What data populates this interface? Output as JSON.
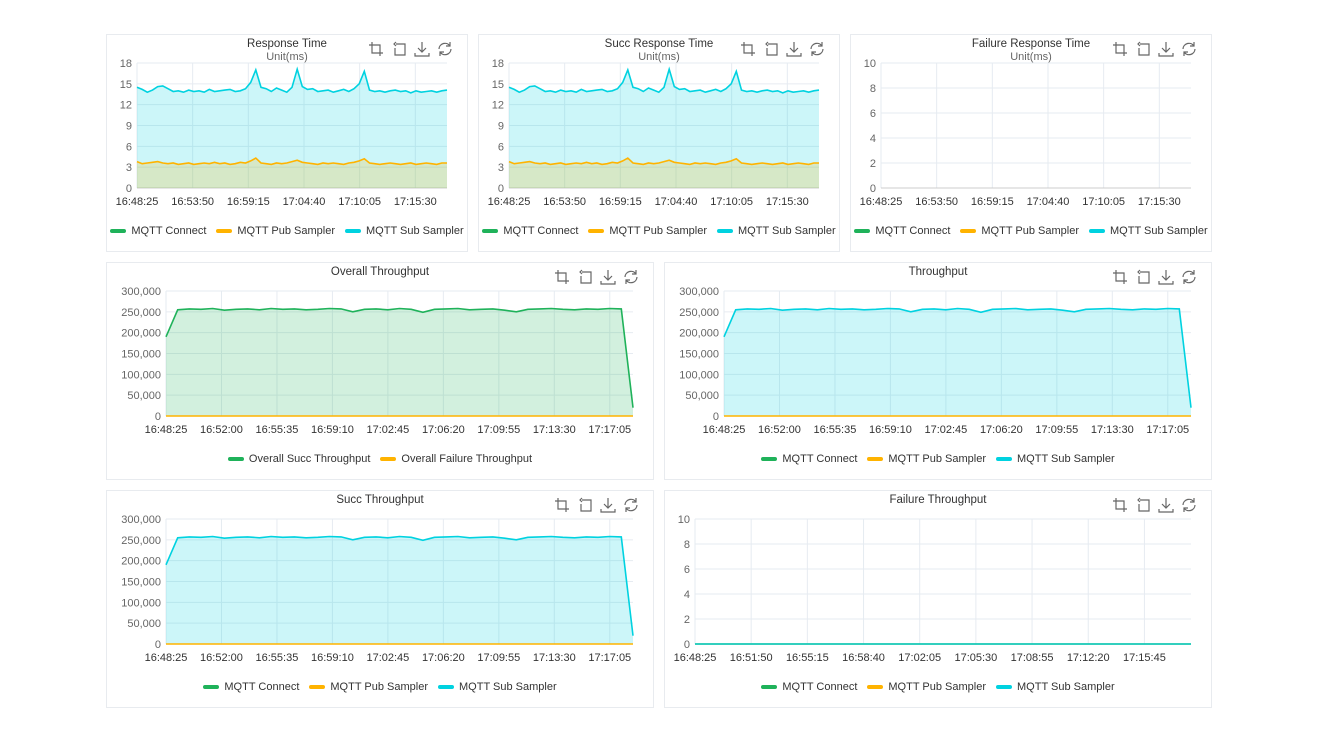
{
  "colors": {
    "connect": "#1fb25a",
    "pub": "#ffb300",
    "sub": "#00d2e0",
    "grid": "#e6ebf1",
    "text": "#666666"
  },
  "toolbar_icons": [
    "zoom-icon",
    "zoom-reset-icon",
    "download-icon",
    "refresh-icon"
  ],
  "chart_data": [
    {
      "type": "area",
      "title": "Response Time",
      "subtitle": "Unit(ms)",
      "ylim": [
        0,
        18
      ],
      "yticks": [
        0,
        3,
        6,
        9,
        12,
        15,
        18
      ],
      "xlim": [
        "16:48:25",
        "17:18:35"
      ],
      "xticks": [
        "16:48:25",
        "16:53:50",
        "16:59:15",
        "17:04:40",
        "17:10:05",
        "17:15:30"
      ],
      "grid": true,
      "legend_position": "bottom",
      "legend": [
        "MQTT Connect",
        "MQTT Pub Sampler",
        "MQTT Sub Sampler"
      ],
      "series": [
        {
          "name": "MQTT Sub Sampler",
          "color": "sub",
          "values": [
            14.5,
            14.2,
            13.8,
            14.1,
            14.6,
            14.7,
            14.3,
            13.9,
            14.0,
            13.8,
            14.1,
            13.9,
            14.0,
            13.8,
            14.2,
            13.9,
            14.0,
            14.1,
            14.2,
            13.9,
            14.0,
            14.3,
            15.2,
            17.0,
            14.5,
            14.3,
            13.9,
            14.4,
            14.1,
            13.8,
            14.5,
            17.1,
            14.6,
            14.2,
            14.3,
            13.9,
            14.0,
            14.1,
            13.8,
            14.0,
            14.2,
            13.9,
            14.3,
            15.0,
            16.8,
            14.1,
            13.9,
            14.0,
            13.8,
            14.0,
            14.1,
            13.9,
            14.0,
            13.7,
            14.0,
            13.8,
            13.9,
            14.0,
            13.8,
            14.0,
            14.1
          ]
        },
        {
          "name": "MQTT Pub Sampler",
          "color": "pub",
          "values": [
            3.8,
            3.5,
            3.6,
            3.7,
            3.8,
            3.6,
            3.5,
            3.6,
            3.4,
            3.5,
            3.6,
            3.4,
            3.5,
            3.6,
            3.5,
            3.7,
            3.5,
            3.6,
            3.4,
            3.5,
            3.7,
            3.6,
            3.9,
            4.3,
            3.6,
            3.5,
            3.4,
            3.6,
            3.5,
            3.6,
            3.8,
            4.0,
            3.7,
            3.6,
            3.5,
            3.4,
            3.6,
            3.5,
            3.6,
            3.5,
            3.4,
            3.6,
            3.7,
            3.9,
            4.2,
            3.6,
            3.5,
            3.4,
            3.5,
            3.6,
            3.5,
            3.4,
            3.5,
            3.6,
            3.4,
            3.5,
            3.6,
            3.5,
            3.4,
            3.6,
            3.6
          ]
        }
      ]
    },
    {
      "type": "area",
      "title": "Succ Response Time",
      "subtitle": "Unit(ms)",
      "ylim": [
        0,
        18
      ],
      "yticks": [
        0,
        3,
        6,
        9,
        12,
        15,
        18
      ],
      "xlim": [
        "16:48:25",
        "17:18:35"
      ],
      "xticks": [
        "16:48:25",
        "16:53:50",
        "16:59:15",
        "17:04:40",
        "17:10:05",
        "17:15:30"
      ],
      "grid": true,
      "legend_position": "bottom",
      "legend": [
        "MQTT Connect",
        "MQTT Pub Sampler",
        "MQTT Sub Sampler"
      ],
      "series": [
        {
          "name": "MQTT Sub Sampler",
          "color": "sub",
          "values": [
            14.5,
            14.2,
            13.8,
            14.1,
            14.6,
            14.7,
            14.3,
            13.9,
            14.0,
            13.8,
            14.1,
            13.9,
            14.0,
            13.8,
            14.2,
            13.9,
            14.0,
            14.1,
            14.2,
            13.9,
            14.0,
            14.3,
            15.2,
            17.0,
            14.5,
            14.3,
            13.9,
            14.4,
            14.1,
            13.8,
            14.5,
            17.1,
            14.6,
            14.2,
            14.3,
            13.9,
            14.0,
            14.1,
            13.8,
            14.0,
            14.2,
            13.9,
            14.3,
            15.0,
            16.8,
            14.1,
            13.9,
            14.0,
            13.8,
            14.0,
            14.1,
            13.9,
            14.0,
            13.7,
            14.0,
            13.8,
            13.9,
            14.0,
            13.8,
            14.0,
            14.1
          ]
        },
        {
          "name": "MQTT Pub Sampler",
          "color": "pub",
          "values": [
            3.8,
            3.5,
            3.6,
            3.7,
            3.8,
            3.6,
            3.5,
            3.6,
            3.4,
            3.5,
            3.6,
            3.4,
            3.5,
            3.6,
            3.5,
            3.7,
            3.5,
            3.6,
            3.4,
            3.5,
            3.7,
            3.6,
            3.9,
            4.3,
            3.6,
            3.5,
            3.4,
            3.6,
            3.5,
            3.6,
            3.8,
            4.0,
            3.7,
            3.6,
            3.5,
            3.4,
            3.6,
            3.5,
            3.6,
            3.5,
            3.4,
            3.6,
            3.7,
            3.9,
            4.2,
            3.6,
            3.5,
            3.4,
            3.5,
            3.6,
            3.5,
            3.4,
            3.5,
            3.6,
            3.4,
            3.5,
            3.6,
            3.5,
            3.4,
            3.6,
            3.6
          ]
        }
      ]
    },
    {
      "type": "line",
      "title": "Failure Response Time",
      "subtitle": "Unit(ms)",
      "ylim": [
        0,
        10
      ],
      "yticks": [
        0,
        2,
        4,
        6,
        8,
        10
      ],
      "xlim": [
        "16:48:25",
        "17:18:35"
      ],
      "xticks": [
        "16:48:25",
        "16:53:50",
        "16:59:15",
        "17:04:40",
        "17:10:05",
        "17:15:30"
      ],
      "grid": true,
      "legend_position": "bottom",
      "legend": [
        "MQTT Connect",
        "MQTT Pub Sampler",
        "MQTT Sub Sampler"
      ],
      "series": []
    },
    {
      "type": "area",
      "title": "Overall Throughput",
      "subtitle": "",
      "ylim": [
        0,
        300000
      ],
      "yticks": [
        0,
        50000,
        100000,
        150000,
        200000,
        250000,
        300000
      ],
      "xlim": [
        "16:48:25",
        "17:18:35"
      ],
      "xticks": [
        "16:48:25",
        "16:52:00",
        "16:55:35",
        "16:59:10",
        "17:02:45",
        "17:06:20",
        "17:09:55",
        "17:13:30",
        "17:17:05"
      ],
      "grid": true,
      "legend_position": "bottom",
      "legend": [
        "Overall Succ Throughput",
        "Overall Failure Throughput"
      ],
      "legend_colors": [
        "connect",
        "pub"
      ],
      "series": [
        {
          "name": "Overall Succ Throughput",
          "color": "connect",
          "values": [
            190000,
            255000,
            257000,
            256000,
            258000,
            254000,
            256000,
            257000,
            255000,
            258000,
            256000,
            257000,
            255000,
            256000,
            258000,
            257000,
            250000,
            256000,
            257000,
            255000,
            258000,
            256000,
            249000,
            256000,
            257000,
            258000,
            255000,
            256000,
            257000,
            254000,
            250000,
            256000,
            257000,
            258000,
            256000,
            255000,
            257000,
            256000,
            258000,
            257000,
            20000
          ]
        },
        {
          "name": "Overall Failure Throughput",
          "color": "pub",
          "values": [
            0,
            0
          ],
          "fill": false
        }
      ]
    },
    {
      "type": "area",
      "title": "Throughput",
      "subtitle": "",
      "ylim": [
        0,
        300000
      ],
      "yticks": [
        0,
        50000,
        100000,
        150000,
        200000,
        250000,
        300000
      ],
      "xlim": [
        "16:48:25",
        "17:18:35"
      ],
      "xticks": [
        "16:48:25",
        "16:52:00",
        "16:55:35",
        "16:59:10",
        "17:02:45",
        "17:06:20",
        "17:09:55",
        "17:13:30",
        "17:17:05"
      ],
      "grid": true,
      "legend_position": "bottom",
      "legend": [
        "MQTT Connect",
        "MQTT Pub Sampler",
        "MQTT Sub Sampler"
      ],
      "series": [
        {
          "name": "MQTT Sub Sampler",
          "color": "sub",
          "values": [
            190000,
            255000,
            257000,
            256000,
            258000,
            254000,
            256000,
            257000,
            255000,
            258000,
            256000,
            257000,
            255000,
            256000,
            258000,
            257000,
            250000,
            256000,
            257000,
            255000,
            258000,
            256000,
            249000,
            256000,
            257000,
            258000,
            255000,
            256000,
            257000,
            254000,
            250000,
            256000,
            257000,
            258000,
            256000,
            255000,
            257000,
            256000,
            258000,
            257000,
            20000
          ]
        },
        {
          "name": "MQTT Pub Sampler",
          "color": "pub",
          "values": [
            0,
            0
          ],
          "fill": false
        }
      ]
    },
    {
      "type": "area",
      "title": "Succ Throughput",
      "subtitle": "",
      "ylim": [
        0,
        300000
      ],
      "yticks": [
        0,
        50000,
        100000,
        150000,
        200000,
        250000,
        300000
      ],
      "xlim": [
        "16:48:25",
        "17:18:35"
      ],
      "xticks": [
        "16:48:25",
        "16:52:00",
        "16:55:35",
        "16:59:10",
        "17:02:45",
        "17:06:20",
        "17:09:55",
        "17:13:30",
        "17:17:05"
      ],
      "grid": true,
      "legend_position": "bottom",
      "legend": [
        "MQTT Connect",
        "MQTT Pub Sampler",
        "MQTT Sub Sampler"
      ],
      "series": [
        {
          "name": "MQTT Sub Sampler",
          "color": "sub",
          "values": [
            190000,
            255000,
            257000,
            256000,
            258000,
            254000,
            256000,
            257000,
            255000,
            258000,
            256000,
            257000,
            255000,
            256000,
            258000,
            257000,
            250000,
            256000,
            257000,
            255000,
            258000,
            256000,
            249000,
            256000,
            257000,
            258000,
            255000,
            256000,
            257000,
            254000,
            250000,
            256000,
            257000,
            258000,
            256000,
            255000,
            257000,
            256000,
            258000,
            257000,
            20000
          ]
        },
        {
          "name": "MQTT Pub Sampler",
          "color": "pub",
          "values": [
            0,
            0
          ],
          "fill": false
        }
      ]
    },
    {
      "type": "line",
      "title": "Failure Throughput",
      "subtitle": "",
      "ylim": [
        0,
        10
      ],
      "yticks": [
        0,
        2,
        4,
        6,
        8,
        10
      ],
      "xlim": [
        "16:48:25",
        "17:18:35"
      ],
      "xticks": [
        "16:48:25",
        "16:51:50",
        "16:55:15",
        "16:58:40",
        "17:02:05",
        "17:05:30",
        "17:08:55",
        "17:12:20",
        "17:15:45"
      ],
      "grid": true,
      "legend_position": "bottom",
      "legend": [
        "MQTT Connect",
        "MQTT Pub Sampler",
        "MQTT Sub Sampler"
      ],
      "series": [
        {
          "name": "MQTT Connect",
          "color": "connect",
          "values": [
            0,
            0
          ],
          "fill": false
        },
        {
          "name": "MQTT Pub Sampler",
          "color": "pub",
          "values": [
            0,
            0
          ],
          "fill": false
        },
        {
          "name": "MQTT Sub Sampler",
          "color": "sub",
          "values": [
            0,
            0
          ],
          "fill": false
        }
      ]
    }
  ]
}
